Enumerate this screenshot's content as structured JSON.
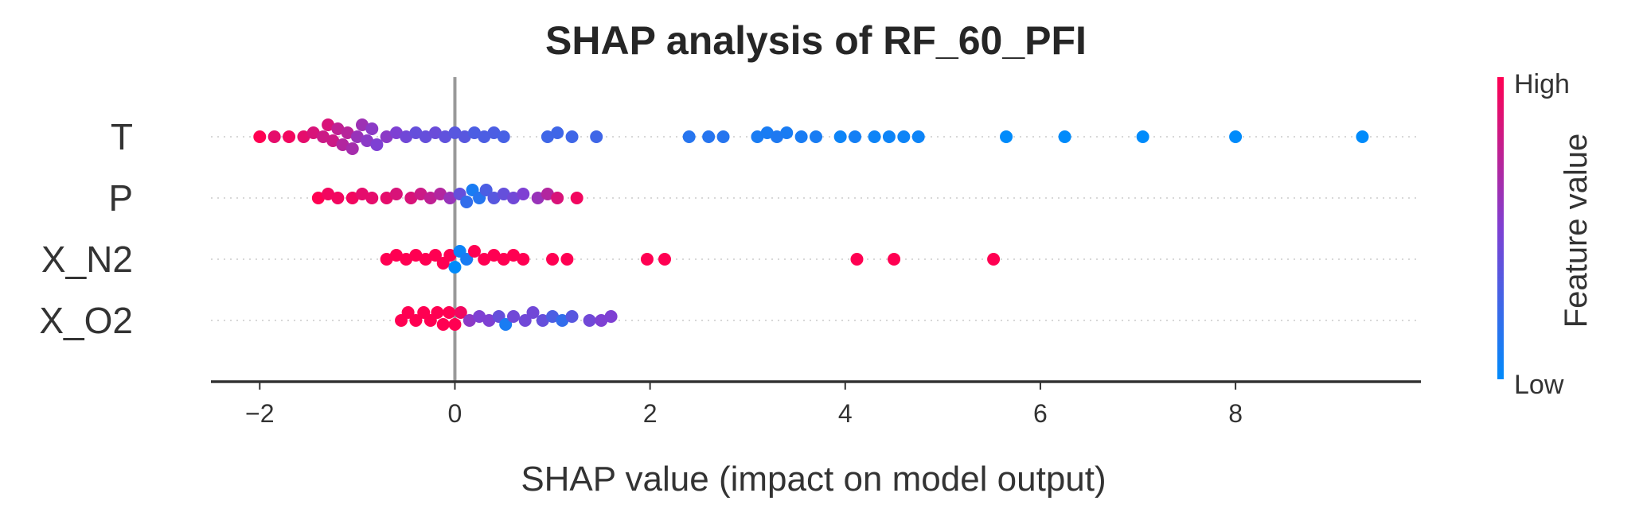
{
  "chart_data": {
    "type": "scatter",
    "subtype": "shap-beeswarm",
    "title": "SHAP analysis of RF_60_PFI",
    "xlabel": "SHAP value (impact on model output)",
    "xlim": [
      -2.5,
      9.9
    ],
    "xticks": [
      "−2",
      "0",
      "2",
      "4",
      "6",
      "8"
    ],
    "xtick_values": [
      -2,
      0,
      2,
      4,
      6,
      8
    ],
    "vline": 0,
    "colorbar": {
      "label": "Feature value",
      "high": "High",
      "low": "Low",
      "colors": [
        "#ff0052",
        "#7e40d3",
        "#008bfb"
      ]
    },
    "features": [
      {
        "name": "T",
        "points": [
          [
            -2.0,
            1.0
          ],
          [
            -1.85,
            0.9
          ],
          [
            -1.7,
            0.95
          ],
          [
            -1.55,
            0.9
          ],
          [
            -1.45,
            0.85
          ],
          [
            -1.35,
            0.8
          ],
          [
            -1.3,
            0.85
          ],
          [
            -1.25,
            0.8
          ],
          [
            -1.2,
            0.75
          ],
          [
            -1.15,
            0.7
          ],
          [
            -1.1,
            0.72
          ],
          [
            -1.05,
            0.65
          ],
          [
            -1.0,
            0.6
          ],
          [
            -0.95,
            0.62
          ],
          [
            -0.9,
            0.55
          ],
          [
            -0.85,
            0.55
          ],
          [
            -0.8,
            0.5
          ],
          [
            -0.7,
            0.55
          ],
          [
            -0.6,
            0.5
          ],
          [
            -0.5,
            0.45
          ],
          [
            -0.4,
            0.4
          ],
          [
            -0.3,
            0.4
          ],
          [
            -0.2,
            0.42
          ],
          [
            -0.1,
            0.38
          ],
          [
            0.0,
            0.35
          ],
          [
            0.1,
            0.35
          ],
          [
            0.2,
            0.3
          ],
          [
            0.3,
            0.3
          ],
          [
            0.4,
            0.3
          ],
          [
            0.5,
            0.28
          ],
          [
            0.95,
            0.25
          ],
          [
            1.05,
            0.25
          ],
          [
            1.2,
            0.25
          ],
          [
            1.45,
            0.25
          ],
          [
            2.4,
            0.15
          ],
          [
            2.6,
            0.15
          ],
          [
            2.75,
            0.15
          ],
          [
            3.1,
            0.1
          ],
          [
            3.2,
            0.1
          ],
          [
            3.3,
            0.12
          ],
          [
            3.4,
            0.1
          ],
          [
            3.55,
            0.1
          ],
          [
            3.7,
            0.1
          ],
          [
            3.95,
            0.05
          ],
          [
            4.1,
            0.08
          ],
          [
            4.3,
            0.05
          ],
          [
            4.45,
            0.05
          ],
          [
            4.6,
            0.05
          ],
          [
            4.75,
            0.05
          ],
          [
            5.65,
            0.0
          ],
          [
            6.25,
            0.0
          ],
          [
            7.05,
            0.0
          ],
          [
            8.0,
            0.0
          ],
          [
            9.3,
            0.0
          ]
        ]
      },
      {
        "name": "P",
        "points": [
          [
            -1.4,
            1.0
          ],
          [
            -1.3,
            0.95
          ],
          [
            -1.2,
            0.95
          ],
          [
            -1.05,
            0.95
          ],
          [
            -0.95,
            0.9
          ],
          [
            -0.85,
            0.9
          ],
          [
            -0.7,
            0.9
          ],
          [
            -0.6,
            0.85
          ],
          [
            -0.45,
            0.85
          ],
          [
            -0.35,
            0.8
          ],
          [
            -0.25,
            0.75
          ],
          [
            -0.15,
            0.7
          ],
          [
            -0.05,
            0.6
          ],
          [
            0.05,
            0.4
          ],
          [
            0.12,
            0.2
          ],
          [
            0.18,
            0.1
          ],
          [
            0.25,
            0.15
          ],
          [
            0.32,
            0.3
          ],
          [
            0.4,
            0.35
          ],
          [
            0.5,
            0.4
          ],
          [
            0.6,
            0.45
          ],
          [
            0.7,
            0.5
          ],
          [
            0.85,
            0.6
          ],
          [
            0.95,
            0.7
          ],
          [
            1.05,
            0.85
          ],
          [
            1.25,
            0.95
          ]
        ]
      },
      {
        "name": "X_N2",
        "points": [
          [
            -0.7,
            1.0
          ],
          [
            -0.6,
            1.0
          ],
          [
            -0.5,
            1.0
          ],
          [
            -0.4,
            1.0
          ],
          [
            -0.3,
            1.0
          ],
          [
            -0.2,
            1.0
          ],
          [
            -0.12,
            1.0
          ],
          [
            -0.05,
            1.0
          ],
          [
            0.0,
            0.0
          ],
          [
            0.05,
            0.05
          ],
          [
            0.12,
            0.1
          ],
          [
            0.2,
            1.0
          ],
          [
            0.3,
            1.0
          ],
          [
            0.4,
            1.0
          ],
          [
            0.5,
            1.0
          ],
          [
            0.6,
            1.0
          ],
          [
            0.7,
            1.0
          ],
          [
            1.0,
            1.0
          ],
          [
            1.15,
            1.0
          ],
          [
            1.97,
            1.0
          ],
          [
            2.15,
            1.0
          ],
          [
            4.12,
            1.0
          ],
          [
            4.5,
            1.0
          ],
          [
            5.52,
            1.0
          ]
        ]
      },
      {
        "name": "X_O2",
        "points": [
          [
            -0.55,
            1.0
          ],
          [
            -0.48,
            1.0
          ],
          [
            -0.4,
            1.0
          ],
          [
            -0.32,
            1.0
          ],
          [
            -0.25,
            1.0
          ],
          [
            -0.18,
            1.0
          ],
          [
            -0.12,
            1.0
          ],
          [
            -0.06,
            1.0
          ],
          [
            0.0,
            1.0
          ],
          [
            0.06,
            0.95
          ],
          [
            0.15,
            0.55
          ],
          [
            0.25,
            0.5
          ],
          [
            0.35,
            0.5
          ],
          [
            0.45,
            0.4
          ],
          [
            0.52,
            0.1
          ],
          [
            0.6,
            0.45
          ],
          [
            0.72,
            0.45
          ],
          [
            0.8,
            0.45
          ],
          [
            0.9,
            0.4
          ],
          [
            1.0,
            0.3
          ],
          [
            1.1,
            0.2
          ],
          [
            1.2,
            0.35
          ],
          [
            1.38,
            0.45
          ],
          [
            1.5,
            0.5
          ],
          [
            1.6,
            0.5
          ]
        ]
      }
    ]
  }
}
